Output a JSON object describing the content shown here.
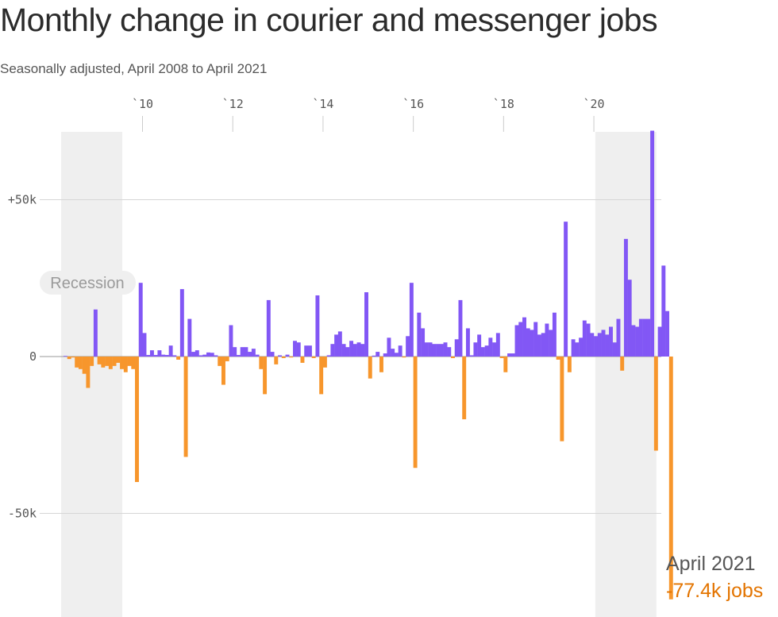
{
  "title": "Monthly change in courier and messenger jobs",
  "subtitle": "Seasonally adjusted, April 2008 to April 2021",
  "colors": {
    "positive": "#8257f5",
    "negative": "#f7962c",
    "recession": "#efefef",
    "annotation_value": "#e37400"
  },
  "recession_label": "Recession",
  "annotation": {
    "date": "April 2021",
    "value": "-77.4k jobs"
  },
  "chart_data": {
    "type": "bar",
    "title": "Monthly change in courier and messenger jobs",
    "subtitle": "Seasonally adjusted, April 2008 to April 2021",
    "xlabel": "",
    "ylabel": "",
    "x_start": "2008-04",
    "x_end": "2021-04",
    "x_ticks": [
      "`10",
      "`12",
      "`14",
      "`16",
      "`18",
      "`20"
    ],
    "y_ticks": [
      "+50k",
      "0",
      "-50k"
    ],
    "ylim": [
      -77.4,
      72
    ],
    "recessions": [
      [
        "2008-04",
        "2009-06"
      ],
      [
        "2020-02",
        "2021-04"
      ]
    ],
    "units": "thousand jobs",
    "values": [
      0.2,
      -0.8,
      -0.3,
      -3.5,
      -4,
      -5.5,
      -10,
      -3,
      15,
      -2.5,
      -3.5,
      -3,
      -4,
      -3,
      -2,
      -4,
      -5,
      -3,
      -4,
      -40,
      23.5,
      7.5,
      0.5,
      2,
      0.5,
      2,
      0.6,
      0.5,
      3.5,
      0.4,
      -1,
      21.5,
      -32,
      12,
      1.5,
      2,
      0.4,
      0.6,
      1.3,
      1.2,
      0.4,
      -3,
      -9,
      -1.5,
      10,
      3,
      0.5,
      3,
      3,
      1.5,
      2.5,
      0.6,
      -4,
      -12,
      18,
      1.5,
      -2.5,
      0.4,
      -0.5,
      0.6,
      -0.3,
      5,
      4.5,
      -2,
      3.5,
      3.5,
      -0.5,
      19.5,
      -12,
      -3.5,
      0.4,
      4,
      7,
      8,
      4,
      3,
      5,
      4,
      4.5,
      4,
      20.5,
      -7,
      0.3,
      1.5,
      -5,
      1,
      6,
      2.5,
      1.2,
      3.5,
      -0.3,
      6.5,
      23.5,
      -35.5,
      14,
      9,
      4.5,
      4.5,
      4,
      4,
      4,
      4.5,
      3,
      -0.5,
      5.5,
      18,
      -20,
      9,
      0.4,
      4.5,
      7,
      3,
      3.5,
      6,
      4.5,
      7.5,
      -0.5,
      -5,
      1,
      1,
      10,
      11,
      12.5,
      9,
      8.5,
      11,
      7,
      7.5,
      10.5,
      8.5,
      14,
      -1,
      -27,
      43,
      -5,
      5.5,
      4.5,
      6,
      11.5,
      10.5,
      7.5,
      6.5,
      7.5,
      8.5,
      7,
      9.5,
      4.5,
      12,
      -4.5,
      37.5,
      24.5,
      10,
      9.5,
      12,
      12,
      12,
      72,
      -30,
      9.5,
      29,
      14.5,
      -77.4
    ]
  }
}
